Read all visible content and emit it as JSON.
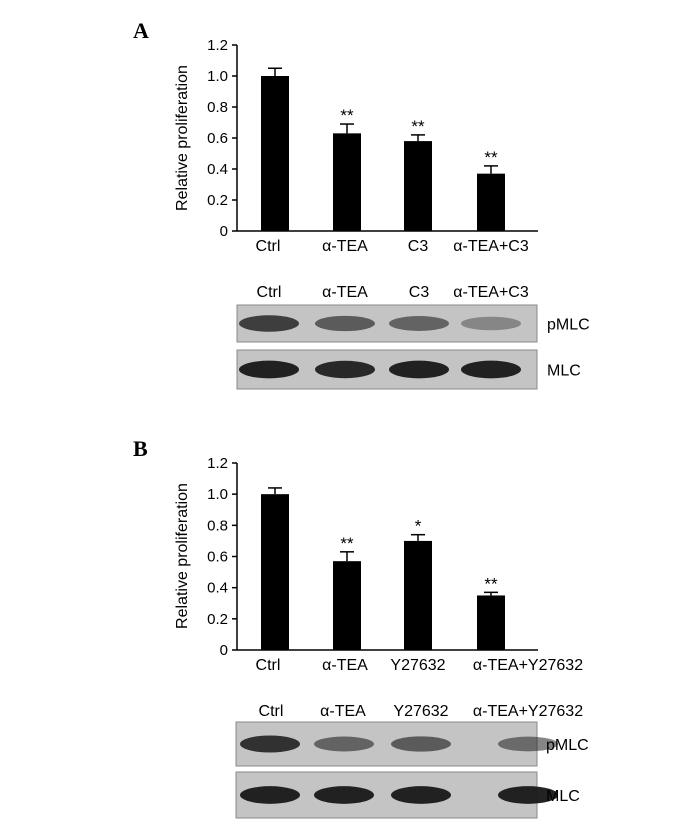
{
  "chart_data": [
    {
      "panel": "A",
      "type": "bar",
      "categories": [
        "Ctrl",
        "α-TEA",
        "C3",
        "α-TEA+C3"
      ],
      "values": [
        1.0,
        0.63,
        0.58,
        0.37
      ],
      "errors": [
        0.05,
        0.06,
        0.04,
        0.05
      ],
      "significance": [
        "",
        "**",
        "**",
        "**"
      ],
      "ylabel": "Relative proliferation",
      "ylim": [
        0,
        1.2
      ],
      "yticks": [
        "0",
        "0.2",
        "0.4",
        "0.6",
        "0.8",
        "1.0",
        "1.2"
      ],
      "blot": {
        "lanes": [
          "Ctrl",
          "α-TEA",
          "C3",
          "α-TEA+C3"
        ],
        "rows": [
          {
            "label": "pMLC",
            "intensity": [
              0.75,
              0.55,
              0.5,
              0.25
            ]
          },
          {
            "label": "MLC",
            "intensity": [
              0.95,
              0.9,
              0.95,
              0.95
            ]
          }
        ]
      }
    },
    {
      "panel": "B",
      "type": "bar",
      "categories": [
        "Ctrl",
        "α-TEA",
        "Y27632",
        "α-TEA+Y27632"
      ],
      "values": [
        1.0,
        0.57,
        0.7,
        0.35
      ],
      "errors": [
        0.04,
        0.06,
        0.04,
        0.02
      ],
      "significance": [
        "",
        "**",
        "*",
        "**"
      ],
      "ylabel": "Relative proliferation",
      "ylim": [
        0,
        1.2
      ],
      "yticks": [
        "0",
        "0.2",
        "0.4",
        "0.6",
        "0.8",
        "1.0",
        "1.2"
      ],
      "blot": {
        "lanes": [
          "Ctrl",
          "α-TEA",
          "Y27632",
          "α-TEA+Y27632"
        ],
        "rows": [
          {
            "label": "pMLC",
            "intensity": [
              0.85,
              0.5,
              0.55,
              0.45
            ]
          },
          {
            "label": "MLC",
            "intensity": [
              0.95,
              0.95,
              0.95,
              0.95
            ]
          }
        ]
      }
    }
  ],
  "colors": {
    "bar": "#000000",
    "blot_background": "#c4c4c4",
    "band": "#1a1a1a"
  }
}
